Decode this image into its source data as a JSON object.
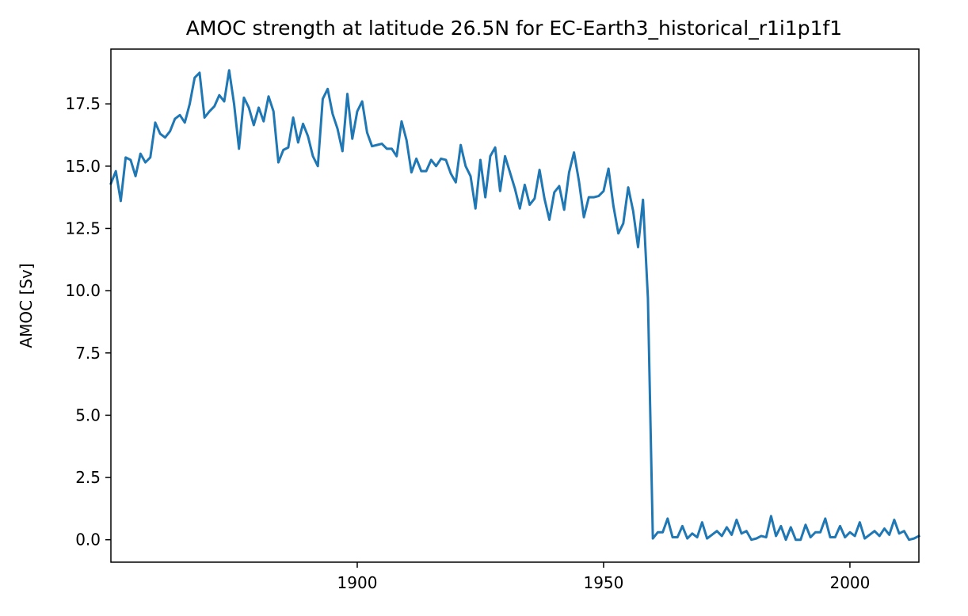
{
  "chart_data": {
    "type": "line",
    "title": "AMOC strength at latitude 26.5N for EC-Earth3_historical_r1i1p1f1",
    "xlabel": "",
    "ylabel": "AMOC [Sv]",
    "xlim": [
      1850,
      2014
    ],
    "ylim": [
      -0.9,
      19.7
    ],
    "grid": false,
    "x_ticks": [
      1900,
      1950,
      2000
    ],
    "x_tick_labels": [
      "1900",
      "1950",
      "2000"
    ],
    "y_ticks": [
      0,
      2.5,
      5,
      7.5,
      10,
      12.5,
      15,
      17.5
    ],
    "y_tick_labels": [
      "0.0",
      "2.5",
      "5.0",
      "7.5",
      "10.0",
      "12.5",
      "15.0",
      "17.5"
    ],
    "line_color": "#1f77b4",
    "series": [
      {
        "x": [
          1850,
          1851,
          1852,
          1853,
          1854,
          1855,
          1856,
          1857,
          1858,
          1859,
          1860,
          1861,
          1862,
          1863,
          1864,
          1865,
          1866,
          1867,
          1868,
          1869,
          1870,
          1871,
          1872,
          1873,
          1874,
          1875,
          1876,
          1877,
          1878,
          1879,
          1880,
          1881,
          1882,
          1883,
          1884,
          1885,
          1886,
          1887,
          1888,
          1889,
          1890,
          1891,
          1892,
          1893,
          1894,
          1895,
          1896,
          1897,
          1898,
          1899,
          1900,
          1901,
          1902,
          1903,
          1904,
          1905,
          1906,
          1907,
          1908,
          1909,
          1910,
          1911,
          1912,
          1913,
          1914,
          1915,
          1916,
          1917,
          1918,
          1919,
          1920,
          1921,
          1922,
          1923,
          1924,
          1925,
          1926,
          1927,
          1928,
          1929,
          1930,
          1931,
          1932,
          1933,
          1934,
          1935,
          1936,
          1937,
          1938,
          1939,
          1940,
          1941,
          1942,
          1943,
          1944,
          1945,
          1946,
          1947,
          1948,
          1949,
          1950,
          1951,
          1952,
          1953,
          1954,
          1955,
          1956,
          1957,
          1958,
          1959,
          1960,
          1961,
          1962,
          1963,
          1964,
          1965,
          1966,
          1967,
          1968,
          1969,
          1970,
          1971,
          1972,
          1973,
          1974,
          1975,
          1976,
          1977,
          1978,
          1979,
          1980,
          1981,
          1982,
          1983,
          1984,
          1985,
          1986,
          1987,
          1988,
          1989,
          1990,
          1991,
          1992,
          1993,
          1994,
          1995,
          1996,
          1997,
          1998,
          1999,
          2000,
          2001,
          2002,
          2003,
          2004,
          2005,
          2006,
          2007,
          2008,
          2009,
          2010,
          2011,
          2012,
          2013,
          2014
        ],
        "values": [
          14.3,
          14.8,
          13.6,
          15.35,
          15.25,
          14.6,
          15.5,
          15.15,
          15.35,
          16.75,
          16.3,
          16.15,
          16.4,
          16.9,
          17.05,
          16.75,
          17.5,
          18.55,
          18.75,
          16.95,
          17.2,
          17.4,
          17.85,
          17.6,
          18.85,
          17.5,
          15.7,
          17.75,
          17.35,
          16.65,
          17.35,
          16.8,
          17.8,
          17.2,
          15.15,
          15.65,
          15.75,
          16.95,
          15.95,
          16.7,
          16.2,
          15.4,
          15.0,
          17.7,
          18.1,
          17.1,
          16.5,
          15.6,
          17.9,
          16.1,
          17.2,
          17.6,
          16.35,
          15.8,
          15.85,
          15.9,
          15.7,
          15.7,
          15.4,
          16.8,
          16.05,
          14.75,
          15.3,
          14.8,
          14.8,
          15.25,
          15.0,
          15.3,
          15.25,
          14.7,
          14.35,
          15.85,
          15.0,
          14.6,
          13.3,
          15.25,
          13.75,
          15.4,
          15.75,
          14.0,
          15.4,
          14.75,
          14.1,
          13.3,
          14.25,
          13.45,
          13.7,
          14.85,
          13.7,
          12.85,
          13.95,
          14.2,
          13.25,
          14.75,
          15.55,
          14.4,
          12.95,
          13.75,
          13.75,
          13.8,
          14.0,
          14.9,
          13.4,
          12.3,
          12.7,
          14.15,
          13.2,
          11.75,
          13.65,
          9.7,
          0.05,
          0.3,
          0.3,
          0.85,
          0.1,
          0.1,
          0.55,
          0.05,
          0.25,
          0.1,
          0.7,
          0.05,
          0.2,
          0.35,
          0.15,
          0.5,
          0.2,
          0.8,
          0.25,
          0.35,
          0.0,
          0.05,
          0.15,
          0.1,
          0.95,
          0.15,
          0.55,
          0.0,
          0.5,
          0.0,
          0.0,
          0.6,
          0.1,
          0.3,
          0.3,
          0.85,
          0.1,
          0.1,
          0.55,
          0.1,
          0.3,
          0.15,
          0.7,
          0.05,
          0.2,
          0.35,
          0.15,
          0.45,
          0.2,
          0.8,
          0.25,
          0.35,
          0.0,
          0.05,
          0.15
        ]
      }
    ]
  }
}
